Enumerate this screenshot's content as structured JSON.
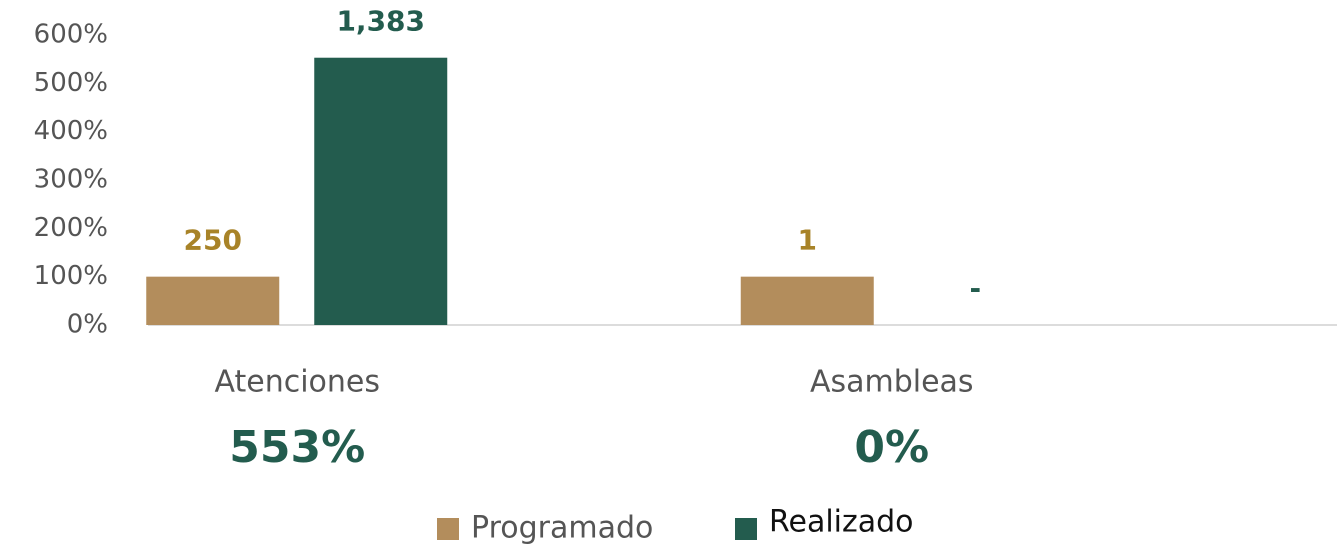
{
  "chart_data": {
    "type": "bar",
    "categories": [
      "Atenciones",
      "Asambleas"
    ],
    "series": [
      {
        "name": "Programado",
        "color": "#b38d5c",
        "label_color": "#a88328",
        "values": [
          100,
          100
        ],
        "data_labels": [
          "250",
          "1"
        ]
      },
      {
        "name": "Realizado",
        "color": "#235c4e",
        "label_color": "#235c4e",
        "values": [
          553,
          0
        ],
        "data_labels": [
          "1,383",
          "-"
        ]
      }
    ],
    "category_annotations": [
      "553%",
      "0%"
    ],
    "ylim": [
      0,
      600
    ],
    "yticks": [
      {
        "value": 0,
        "label": "0%"
      },
      {
        "value": 100,
        "label": "100%"
      },
      {
        "value": 200,
        "label": "200%"
      },
      {
        "value": 300,
        "label": "300%"
      },
      {
        "value": 400,
        "label": "400%"
      },
      {
        "value": 500,
        "label": "500%"
      },
      {
        "value": 600,
        "label": "600%"
      }
    ],
    "grid": false,
    "legend": "bottom"
  }
}
